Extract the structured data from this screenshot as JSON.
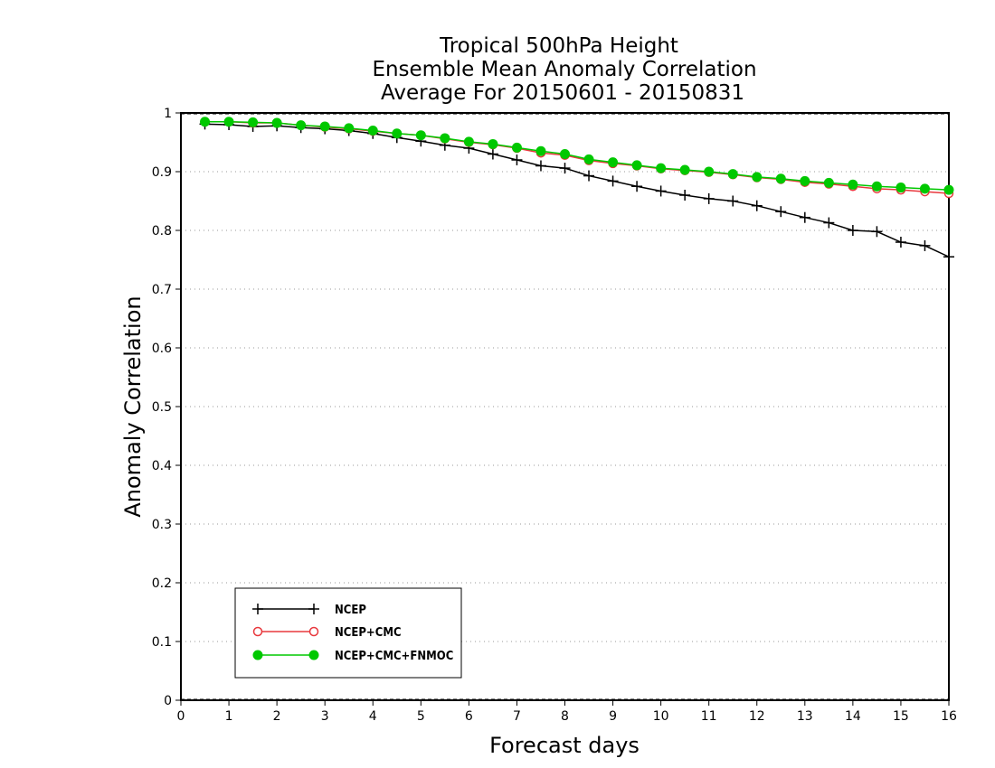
{
  "chart_data": {
    "type": "line",
    "title": [
      "Tropical 500hPa Height",
      "Ensemble Mean Anomaly Correlation",
      "Average For 20150601 - 20150831"
    ],
    "xlabel": "Forecast days",
    "ylabel": "Anomaly Correlation",
    "xlim": [
      0,
      16
    ],
    "ylim": [
      0,
      1
    ],
    "x_ticks": [
      "0",
      "1",
      "2",
      "3",
      "4",
      "5",
      "6",
      "7",
      "8",
      "9",
      "10",
      "11",
      "12",
      "13",
      "14",
      "15",
      "16"
    ],
    "y_ticks": [
      "0",
      "0.1",
      "0.2",
      "0.3",
      "0.4",
      "0.5",
      "0.6",
      "0.7",
      "0.8",
      "0.9",
      "1"
    ],
    "grid": "horizontal dotted",
    "legend_position": "bottom-left",
    "x": [
      0.5,
      1,
      1.5,
      2,
      2.5,
      3,
      3.5,
      4,
      4.5,
      5,
      5.5,
      6,
      6.5,
      7,
      7.5,
      8,
      8.5,
      9,
      9.5,
      10,
      10.5,
      11,
      11.5,
      12,
      12.5,
      13,
      13.5,
      14,
      14.5,
      15,
      15.5,
      16
    ],
    "series": [
      {
        "name": "NCEP",
        "color": "#000000",
        "marker": "plus",
        "values": [
          0.981,
          0.98,
          0.977,
          0.978,
          0.975,
          0.973,
          0.97,
          0.965,
          0.958,
          0.952,
          0.945,
          0.94,
          0.93,
          0.92,
          0.91,
          0.906,
          0.893,
          0.884,
          0.875,
          0.867,
          0.86,
          0.854,
          0.85,
          0.842,
          0.832,
          0.822,
          0.813,
          0.8,
          0.798,
          0.78,
          0.774,
          0.755
        ]
      },
      {
        "name": "NCEP+CMC",
        "color": "#e8383d",
        "marker": "open-circle",
        "values": [
          0.985,
          0.985,
          0.983,
          0.983,
          0.979,
          0.976,
          0.973,
          0.969,
          0.965,
          0.962,
          0.956,
          0.95,
          0.946,
          0.94,
          0.932,
          0.928,
          0.919,
          0.914,
          0.91,
          0.905,
          0.902,
          0.899,
          0.895,
          0.89,
          0.887,
          0.882,
          0.879,
          0.875,
          0.871,
          0.869,
          0.866,
          0.863
        ]
      },
      {
        "name": "NCEP+CMC+FNMOC",
        "color": "#00c800",
        "marker": "filled-circle",
        "values": [
          0.985,
          0.985,
          0.984,
          0.983,
          0.979,
          0.977,
          0.974,
          0.97,
          0.965,
          0.962,
          0.957,
          0.951,
          0.947,
          0.941,
          0.935,
          0.93,
          0.921,
          0.916,
          0.911,
          0.906,
          0.903,
          0.9,
          0.896,
          0.891,
          0.888,
          0.884,
          0.881,
          0.878,
          0.875,
          0.873,
          0.871,
          0.869
        ]
      }
    ]
  }
}
